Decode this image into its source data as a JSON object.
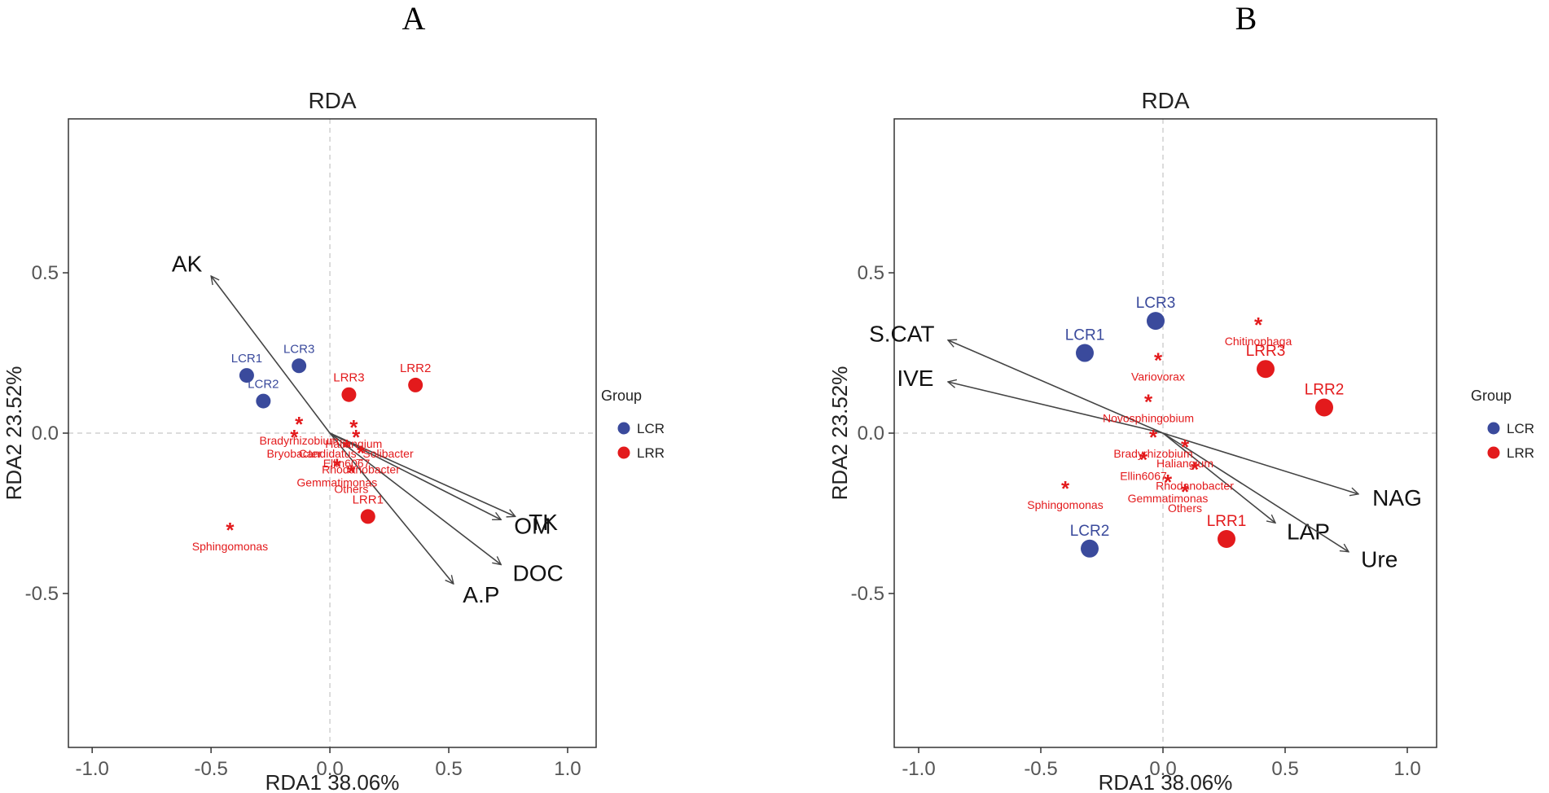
{
  "panel_labels": [
    "A",
    "B"
  ],
  "legend": {
    "title": "Group",
    "items": [
      {
        "label": "LCR",
        "color": "#3a4a9c"
      },
      {
        "label": "LRR",
        "color": "#e31a1c"
      }
    ]
  },
  "colors": {
    "LCR": "#3a4a9c",
    "LRR": "#e31a1c",
    "arrow": "#444444",
    "genus": "#e31a1c"
  },
  "chart_data": [
    {
      "type": "scatter",
      "panel": "A",
      "title": "RDA",
      "xlabel": "RDA1 38.06%",
      "ylabel": "RDA2 23.52%",
      "xlim": [
        -1.1,
        1.12
      ],
      "ylim": [
        -0.98,
        0.98
      ],
      "xticks": [
        -1.0,
        -0.5,
        0.0,
        0.5,
        1.0
      ],
      "xtick_labels": [
        "-1.0",
        "-0.5",
        "0.0",
        "0.5",
        "1.0"
      ],
      "yticks": [
        0.5,
        0.0,
        -0.5
      ],
      "ytick_labels": [
        "0.5",
        "0.0",
        "-0.5"
      ],
      "samples": [
        {
          "label": "LCR1",
          "group": "LCR",
          "x": -0.35,
          "y": 0.18
        },
        {
          "label": "LCR2",
          "group": "LCR",
          "x": -0.28,
          "y": 0.1
        },
        {
          "label": "LCR3",
          "group": "LCR",
          "x": -0.13,
          "y": 0.21
        },
        {
          "label": "LRR3",
          "group": "LRR",
          "x": 0.08,
          "y": 0.12
        },
        {
          "label": "LRR2",
          "group": "LRR",
          "x": 0.36,
          "y": 0.15
        },
        {
          "label": "LRR1",
          "group": "LRR",
          "x": 0.16,
          "y": -0.26
        }
      ],
      "env_arrows": [
        {
          "label": "AK",
          "x": -0.5,
          "y": 0.49
        },
        {
          "label": "OM",
          "x": 0.72,
          "y": -0.27
        },
        {
          "label": "TK",
          "x": 0.78,
          "y": -0.26
        },
        {
          "label": "DOC",
          "x": 0.72,
          "y": -0.41
        },
        {
          "label": "A.P",
          "x": 0.52,
          "y": -0.47
        }
      ],
      "genera": [
        {
          "label": "Bradyrhizobium",
          "x": -0.13,
          "y": 0.03
        },
        {
          "label": "Haliangium",
          "x": 0.1,
          "y": 0.02
        },
        {
          "label": "Bryobacter",
          "x": -0.15,
          "y": -0.01
        },
        {
          "label": "Candidatus_Solibacter",
          "x": 0.11,
          "y": -0.01
        },
        {
          "label": "Ellin6067",
          "x": 0.07,
          "y": -0.04
        },
        {
          "label": "Rhodanobacter",
          "x": 0.13,
          "y": -0.06
        },
        {
          "label": "Gemmatimonas",
          "x": 0.03,
          "y": -0.1
        },
        {
          "label": "Others",
          "x": 0.09,
          "y": -0.12
        },
        {
          "label": "Sphingomonas",
          "x": -0.42,
          "y": -0.3
        }
      ]
    },
    {
      "type": "scatter",
      "panel": "B",
      "title": "RDA",
      "xlabel": "RDA1 38.06%",
      "ylabel": "RDA2 23.52%",
      "xlim": [
        -1.1,
        1.12
      ],
      "ylim": [
        -0.98,
        0.98
      ],
      "xticks": [
        -1.0,
        -0.5,
        0.0,
        0.5,
        1.0
      ],
      "xtick_labels": [
        "-1.0",
        "-0.5",
        "0.0",
        "0.5",
        "1.0"
      ],
      "yticks": [
        0.5,
        0.0,
        -0.5
      ],
      "ytick_labels": [
        "0.5",
        "0.0",
        "-0.5"
      ],
      "samples": [
        {
          "label": "LCR1",
          "group": "LCR",
          "x": -0.32,
          "y": 0.25
        },
        {
          "label": "LCR2",
          "group": "LCR",
          "x": -0.3,
          "y": -0.36
        },
        {
          "label": "LCR3",
          "group": "LCR",
          "x": -0.03,
          "y": 0.35
        },
        {
          "label": "LRR3",
          "group": "LRR",
          "x": 0.42,
          "y": 0.2
        },
        {
          "label": "LRR2",
          "group": "LRR",
          "x": 0.66,
          "y": 0.08
        },
        {
          "label": "LRR1",
          "group": "LRR",
          "x": 0.26,
          "y": -0.33
        }
      ],
      "env_arrows": [
        {
          "label": "S.CAT",
          "x": -0.88,
          "y": 0.29
        },
        {
          "label": "IVE",
          "x": -0.88,
          "y": 0.16
        },
        {
          "label": "NAG",
          "x": 0.8,
          "y": -0.19
        },
        {
          "label": "LAP",
          "x": 0.46,
          "y": -0.28
        },
        {
          "label": "Ure",
          "x": 0.76,
          "y": -0.37
        }
      ],
      "genera": [
        {
          "label": "Chitinophaga",
          "x": 0.39,
          "y": 0.34
        },
        {
          "label": "Variovorax",
          "x": -0.02,
          "y": 0.23
        },
        {
          "label": "Novosphingobium",
          "x": -0.06,
          "y": 0.1
        },
        {
          "label": "Bradyrhizobium",
          "x": -0.04,
          "y": -0.01
        },
        {
          "label": "Haliangium",
          "x": 0.09,
          "y": -0.04
        },
        {
          "label": "Ellin6067",
          "x": -0.08,
          "y": -0.08
        },
        {
          "label": "Rhodanobacter",
          "x": 0.13,
          "y": -0.11
        },
        {
          "label": "Gemmatimonas",
          "x": 0.02,
          "y": -0.15
        },
        {
          "label": "Others",
          "x": 0.09,
          "y": -0.18
        },
        {
          "label": "Sphingomonas",
          "x": -0.4,
          "y": -0.17
        }
      ]
    }
  ]
}
